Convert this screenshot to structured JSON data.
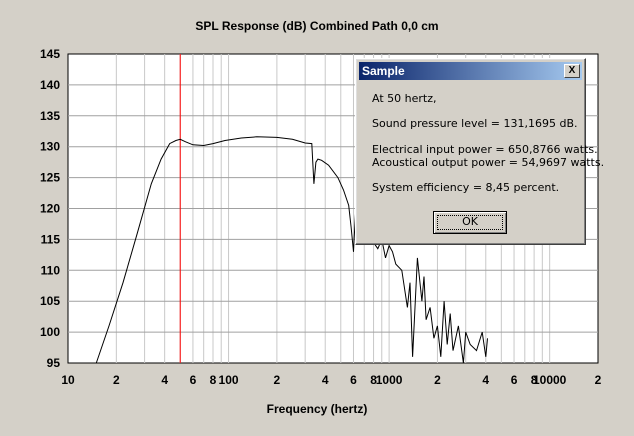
{
  "chart": {
    "title": "SPL Response (dB)    Combined    Path 0,0 cm",
    "xlabel": "Frequency (hertz)"
  },
  "dialog": {
    "title": "Sample",
    "close_label": "X",
    "line1": "At 50 hertz,",
    "line2": "Sound pressure level = 131,1695 dB.",
    "line3": "Electrical input power = 650,8766 watts.",
    "line4": "Acoustical output power = 54,9697 watts.",
    "line5": "System efficiency = 8,45 percent.",
    "ok_label": "OK"
  },
  "colors": {
    "marker": "#ff0000",
    "grid": "#c8c8c8",
    "curve": "#000000"
  },
  "chart_data": {
    "type": "line",
    "title": "SPL Response (dB)    Combined    Path 0,0 cm",
    "xlabel": "Frequency (hertz)",
    "ylabel": "",
    "x_scale": "log",
    "xlim": [
      10,
      20000
    ],
    "ylim": [
      95,
      145
    ],
    "x_ticks": [
      10,
      20,
      40,
      60,
      80,
      100,
      200,
      400,
      600,
      800,
      1000,
      2000,
      4000,
      6000,
      8000,
      10000,
      20000
    ],
    "x_tick_labels": [
      "10",
      "2",
      "4",
      "6",
      "8",
      "100",
      "2",
      "4",
      "6",
      "8",
      "1000",
      "2",
      "4",
      "6",
      "8",
      "10000",
      "2"
    ],
    "y_ticks": [
      95,
      100,
      105,
      110,
      115,
      120,
      125,
      130,
      135,
      140,
      145
    ],
    "y_tick_labels": [
      "95",
      "100",
      "105",
      "110",
      "115",
      "120",
      "125",
      "130",
      "135",
      "140",
      "145"
    ],
    "marker_x": 50,
    "grid": true,
    "series": [
      {
        "x": [
          15,
          18,
          22,
          27,
          33,
          38,
          43,
          47,
          50,
          54,
          60,
          70,
          80,
          95,
          120,
          150,
          200,
          250,
          300,
          330,
          340,
          350,
          360,
          380,
          420,
          480,
          520,
          560,
          580,
          600,
          605,
          620,
          650,
          700,
          750,
          800,
          850,
          900,
          950,
          1000,
          1050,
          1100,
          1200,
          1300,
          1350,
          1400,
          1500,
          1600,
          1650,
          1700,
          1800,
          1900,
          2000,
          2100,
          2200,
          2300,
          2400,
          2500,
          2700,
          2900,
          3000,
          3200,
          3500,
          3800,
          4000,
          4100
        ],
        "y": [
          95,
          101,
          108,
          116,
          124,
          128,
          130.5,
          131,
          131.2,
          130.8,
          130.3,
          130.2,
          130.5,
          131,
          131.4,
          131.6,
          131.5,
          131.2,
          130.6,
          130.5,
          124,
          127.5,
          128,
          127.8,
          127,
          125,
          123,
          120.5,
          117,
          113,
          115,
          120,
          122.5,
          121,
          118.5,
          114.5,
          113.5,
          115,
          112,
          114,
          113,
          111,
          110,
          104,
          108,
          96,
          112,
          105,
          109,
          102,
          104,
          99,
          101,
          96,
          105,
          98,
          103,
          97,
          101,
          95,
          100,
          98,
          97,
          100,
          96,
          99
        ]
      }
    ]
  }
}
